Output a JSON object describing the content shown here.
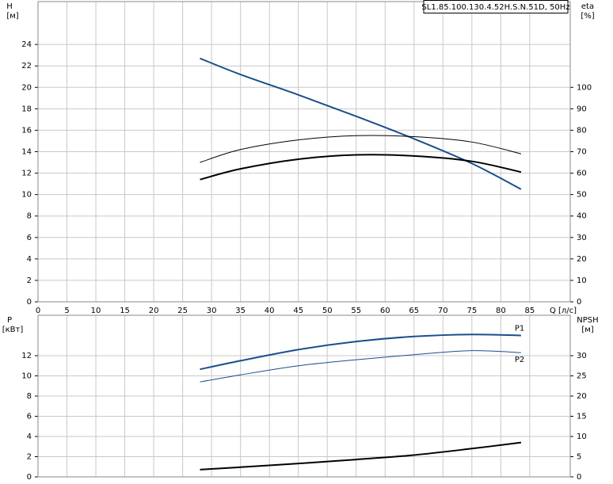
{
  "title": "SL1.85.100.130.4.52H.S.N.51D, 50Hz",
  "chart_data": [
    {
      "type": "line",
      "ylabel": "H",
      "yunit": "[м]",
      "y2label": "eta",
      "y2unit": "[%]",
      "xlabel": "Q [л/с]",
      "x": [
        28,
        35,
        45,
        55,
        65,
        75,
        83.5
      ],
      "xlim": [
        0,
        92
      ],
      "xticks": [
        0,
        5,
        10,
        15,
        20,
        25,
        30,
        35,
        40,
        45,
        50,
        55,
        60,
        65,
        70,
        75,
        80,
        85
      ],
      "ylim": [
        0,
        28
      ],
      "yticks": [
        0,
        2,
        4,
        6,
        8,
        10,
        12,
        14,
        16,
        18,
        20,
        22,
        24
      ],
      "y2lim": [
        0,
        140
      ],
      "y2ticks": [
        0,
        10,
        20,
        30,
        40,
        50,
        60,
        70,
        80,
        90,
        100
      ],
      "grid": true,
      "series": [
        {
          "color": "#1a4f8c",
          "values": [
            22.7,
            21.2,
            19.3,
            17.3,
            15.2,
            12.9,
            10.5
          ]
        },
        {
          "color": "#000000",
          "axis": "y2",
          "values": [
            65,
            71,
            75.5,
            77.5,
            77,
            74.5,
            69
          ]
        },
        {
          "color": "#000000",
          "axis": "y2",
          "values": [
            57,
            62,
            66.5,
            68.5,
            68,
            65.5,
            60.5
          ]
        }
      ]
    },
    {
      "type": "line",
      "ylabel": "P",
      "yunit": "[кВт]",
      "y2label": "NPSH",
      "y2unit": "[м]",
      "x": [
        28,
        35,
        45,
        55,
        65,
        75,
        83.5
      ],
      "ylim": [
        0,
        16
      ],
      "yticks": [
        0,
        2,
        4,
        6,
        8,
        10,
        12
      ],
      "y2lim": [
        0,
        40
      ],
      "y2ticks": [
        0,
        5,
        10,
        15,
        20,
        25,
        30
      ],
      "grid": true,
      "series": [
        {
          "name": "P1",
          "color": "#1a4f8c",
          "values": [
            10.65,
            11.5,
            12.6,
            13.4,
            13.9,
            14.1,
            14.0
          ]
        },
        {
          "name": "P2",
          "color": "#1a4f8c",
          "values": [
            9.4,
            10.1,
            11.0,
            11.6,
            12.1,
            12.5,
            12.3
          ]
        },
        {
          "color": "#000000",
          "axis": "y2",
          "values": [
            1.8,
            2.4,
            3.3,
            4.3,
            5.4,
            7.0,
            8.5
          ]
        }
      ]
    }
  ]
}
